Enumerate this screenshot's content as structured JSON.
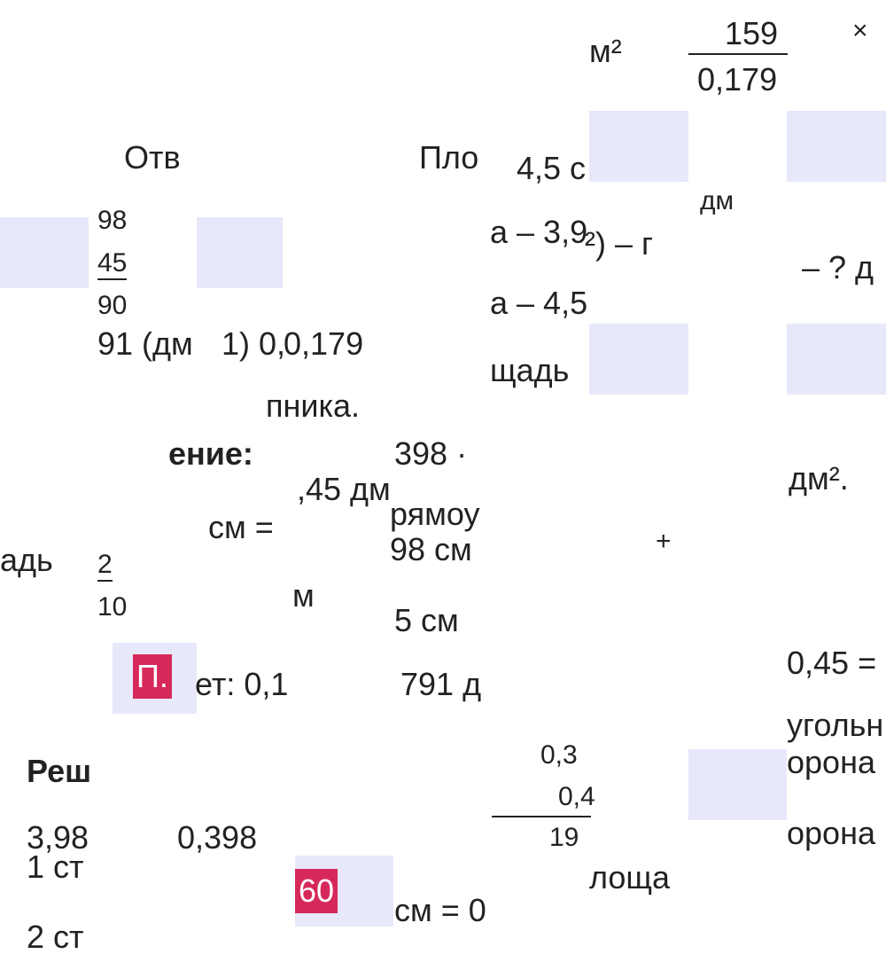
{
  "fragments": [
    "м²",
    "159",
    "0,179",
    "×",
    "Отв",
    "Пло",
    "4,5 с",
    "дм",
    "98",
    "45",
    "90",
    "а – 3,9",
    "²) – г",
    "– ? д",
    "а – 4,5",
    "91 (дм",
    "1) 0,",
    "0,179",
    "щадь",
    "пника.",
    "ение:",
    "398 ·",
    "дм².",
    ",45 дм",
    "рямоу",
    "см =",
    "98 см",
    "+",
    "адь",
    "2",
    "10",
    "м",
    "5 см",
    "0,45 =",
    "ет: 0,1",
    "791 д",
    "угольн",
    "0,3",
    "0,4",
    "19",
    "Реш",
    "орона",
    "орона",
    "3,98",
    "0,398",
    "1 ст",
    "лоща",
    "см = 0",
    "2 ст"
  ],
  "badges": [
    "П.",
    "60"
  ]
}
